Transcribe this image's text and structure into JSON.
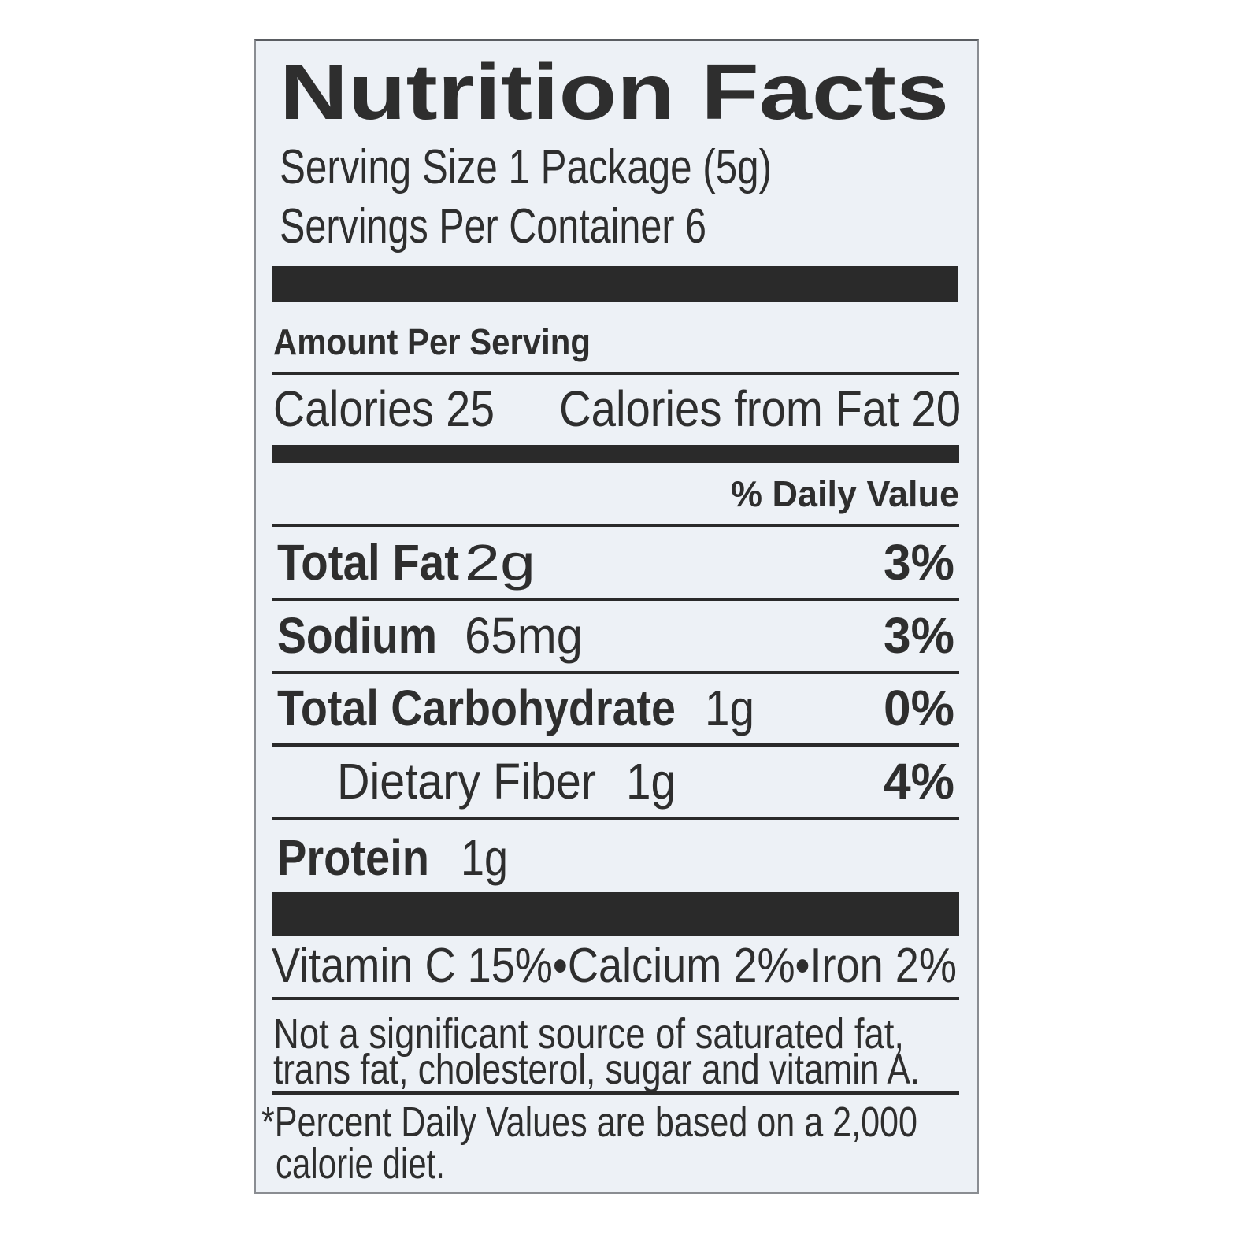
{
  "label": {
    "title": "Nutrition Facts",
    "serving_size": "Serving Size 1 Package (5g)",
    "servings_per_container": "Servings Per Container 6",
    "amount_per_serving": "Amount Per Serving",
    "calories": "Calories 25",
    "calories_from_fat": "Calories from Fat 20",
    "daily_value_header": "% Daily Value",
    "nutrients": [
      {
        "name": "Total Fat",
        "amount": "2g",
        "dv": "3%"
      },
      {
        "name": "Sodium",
        "amount": "65mg",
        "dv": "3%"
      },
      {
        "name": "Total Carbohydrate",
        "amount": "1g",
        "dv": "0%"
      },
      {
        "name": "Dietary Fiber",
        "amount": "1g",
        "dv": "4%"
      },
      {
        "name": "Protein",
        "amount": "1g",
        "dv": ""
      }
    ],
    "vitamins": "Vitamin C 15%•Calcium 2%•Iron 2%",
    "not_significant_line1": "Not a significant source of saturated fat,",
    "not_significant_line2": "trans fat, cholesterol, sugar and vitamin A.",
    "footnote_line1": "*Percent Daily Values are based on a 2,000",
    "footnote_line2": "calorie diet."
  },
  "colors": {
    "text": "#2e2e2e",
    "panel_background": "#edf1f6",
    "rules": "#2a2a2a"
  }
}
